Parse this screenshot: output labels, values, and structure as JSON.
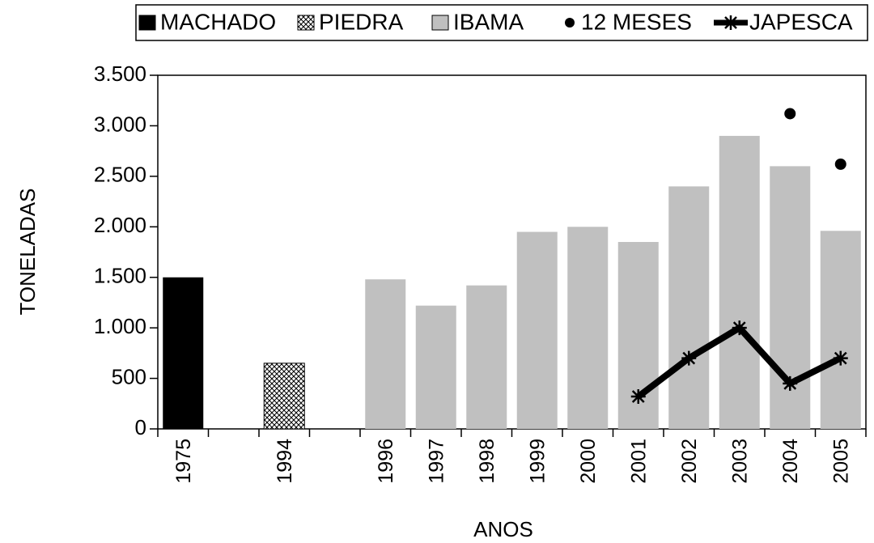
{
  "chart_data": {
    "type": "bar",
    "x_label": "ANOS",
    "y_label": "TONELADAS",
    "categories": [
      "1975",
      null,
      "1994",
      null,
      "1996",
      "1997",
      "1998",
      "1999",
      "2000",
      "2001",
      "2002",
      "2003",
      "2004",
      "2005"
    ],
    "series": [
      {
        "name": "MACHADO",
        "type": "bar",
        "color": "#000000",
        "values": [
          1500,
          null,
          null,
          null,
          null,
          null,
          null,
          null,
          null,
          null,
          null,
          null,
          null,
          null
        ]
      },
      {
        "name": "PIEDRA",
        "type": "bar",
        "color": "#000000",
        "pattern": "hatch",
        "values": [
          null,
          null,
          650,
          null,
          null,
          null,
          null,
          null,
          null,
          null,
          null,
          null,
          null,
          null
        ]
      },
      {
        "name": "IBAMA",
        "type": "bar",
        "color": "#c0c0c0",
        "values": [
          null,
          null,
          null,
          null,
          1480,
          1220,
          1420,
          1950,
          2000,
          1850,
          2400,
          2900,
          2600,
          1960
        ]
      },
      {
        "name": "12 MESES",
        "type": "scatter",
        "color": "#000000",
        "values": [
          null,
          null,
          null,
          null,
          null,
          null,
          null,
          null,
          null,
          null,
          null,
          null,
          3120,
          2620
        ]
      },
      {
        "name": "JAPESCA",
        "type": "line",
        "color": "#000000",
        "values": [
          null,
          null,
          null,
          null,
          null,
          null,
          null,
          null,
          null,
          320,
          700,
          1000,
          450,
          700
        ]
      }
    ],
    "ylim": [
      0,
      3500
    ],
    "yticks": [
      0,
      500,
      {
        "value": 1000,
        "label": "1.000"
      },
      {
        "value": 1500,
        "label": "1.500"
      },
      {
        "value": 2000,
        "label": "2.000"
      },
      {
        "value": 2500,
        "label": "2.500"
      },
      {
        "value": 3000,
        "label": "3.000"
      },
      {
        "value": 3500,
        "label": "3.500"
      }
    ],
    "legend": "top"
  }
}
